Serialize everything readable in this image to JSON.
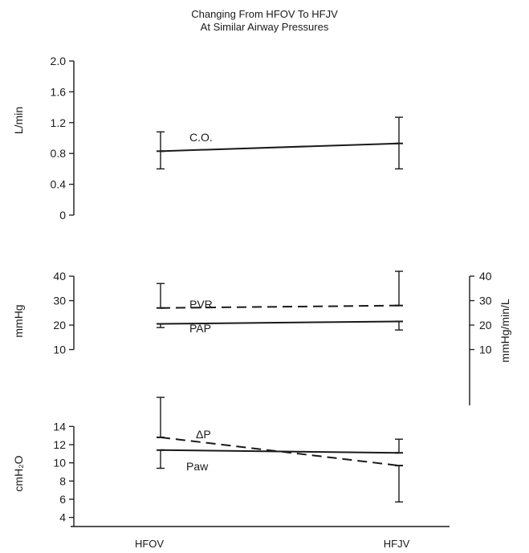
{
  "title": "Changing From HFOV To HFJV",
  "subtitle": "At Similar Airway Pressures",
  "xcategories": [
    "HFOV",
    "HFJV"
  ],
  "chart_data": [
    {
      "type": "line",
      "ylabel": "L/min",
      "ylim": [
        0,
        2.0
      ],
      "yticks": [
        {
          "v": 0,
          "label": "0"
        },
        {
          "v": 0.4,
          "label": "0.4"
        },
        {
          "v": 0.8,
          "label": "0.8"
        },
        {
          "v": 1.2,
          "label": "1.2"
        },
        {
          "v": 1.6,
          "label": "1.6"
        },
        {
          "v": 2.0,
          "label": "2.0"
        }
      ],
      "series": [
        {
          "name": "C.O.",
          "dashed": false,
          "values": [
            0.83,
            0.93
          ],
          "err_low": [
            0.6,
            0.6
          ],
          "err_high": [
            1.08,
            1.27
          ]
        }
      ]
    },
    {
      "type": "line",
      "ylabel": "mmHg",
      "ylabel_right": "mmHg/min/L",
      "ylim": [
        0,
        42
      ],
      "yticks": [
        {
          "v": 10,
          "label": "10"
        },
        {
          "v": 20,
          "label": "20"
        },
        {
          "v": 30,
          "label": "30"
        },
        {
          "v": 40,
          "label": "40"
        }
      ],
      "yticks_right": [
        {
          "v": 10,
          "label": "10"
        },
        {
          "v": 20,
          "label": "20"
        },
        {
          "v": 30,
          "label": "30"
        },
        {
          "v": 40,
          "label": "40"
        }
      ],
      "series": [
        {
          "name": "PVR",
          "dashed": true,
          "values": [
            27,
            28
          ],
          "err_low": [
            27,
            28
          ],
          "err_high": [
            37,
            42
          ]
        },
        {
          "name": "PAP",
          "dashed": false,
          "values": [
            20.5,
            21.5
          ],
          "err_low": [
            19,
            18
          ],
          "err_high": [
            20.5,
            21.5
          ]
        }
      ]
    },
    {
      "type": "line",
      "ylabel": "cmH₂O",
      "ylim": [
        3,
        15
      ],
      "yticks": [
        {
          "v": 4,
          "label": "4"
        },
        {
          "v": 6,
          "label": "6"
        },
        {
          "v": 8,
          "label": "8"
        },
        {
          "v": 10,
          "label": "10"
        },
        {
          "v": 12,
          "label": "12"
        },
        {
          "v": 14,
          "label": "14"
        }
      ],
      "series": [
        {
          "name": "ΔP",
          "dashed": true,
          "values": [
            12.8,
            9.7
          ],
          "err_low": [
            12.8,
            5.7
          ],
          "err_high": [
            17.2,
            9.7
          ]
        },
        {
          "name": "Paw",
          "dashed": false,
          "values": [
            11.4,
            11.1
          ],
          "err_low": [
            9.4,
            11.1
          ],
          "err_high": [
            11.4,
            12.6
          ]
        }
      ]
    }
  ]
}
